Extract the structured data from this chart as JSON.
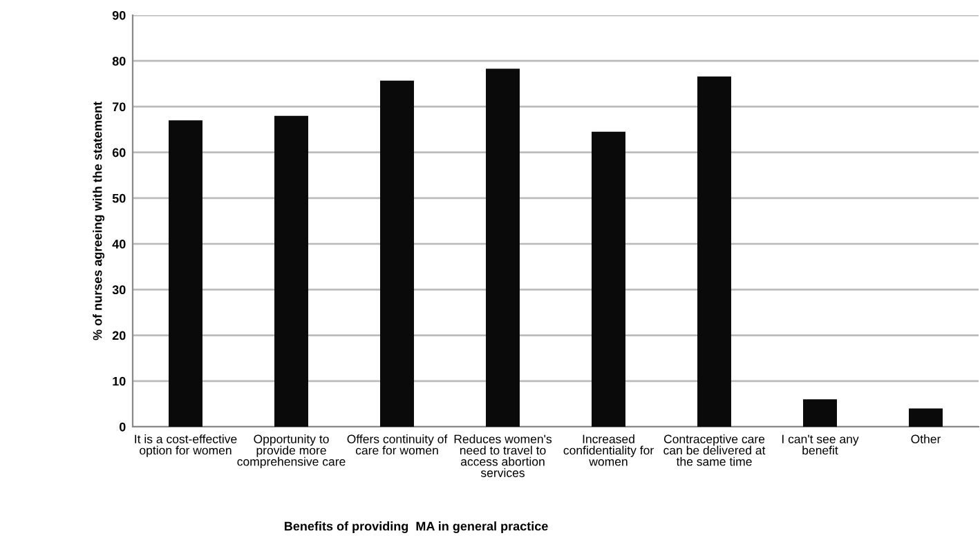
{
  "chart_data": {
    "type": "bar",
    "categories": [
      "It is a cost-effective\noption for women",
      "Opportunity to\nprovide more\ncomprehensive care",
      "Offers continuity of\ncare for women",
      "Reduces women's\nneed to travel to\naccess abortion\nservices",
      "Increased\nconfidentiality for\nwomen",
      "Contraceptive care\ncan be delivered at\nthe same time",
      "I can't see any\nbenefit",
      "Other"
    ],
    "values": [
      67,
      68,
      75.7,
      78.3,
      64.5,
      76.6,
      6,
      4
    ],
    "color": "#0a0a0a",
    "xlabel": "Benefits of providing  MA in general practice",
    "ylabel": "% of nurses agreeing with the statement",
    "ylim": [
      0,
      90
    ],
    "yticks": [
      0,
      10,
      20,
      30,
      40,
      50,
      60,
      70,
      80,
      90
    ],
    "grid": "y",
    "legend": false
  }
}
